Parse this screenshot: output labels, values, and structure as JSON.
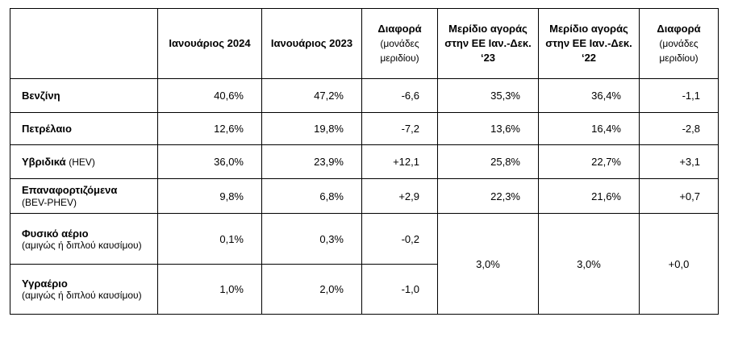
{
  "table": {
    "columns": [
      {
        "title": "Ιανουάριος 2024"
      },
      {
        "title": "Ιανουάριος 2023"
      },
      {
        "title": "Διαφορά",
        "note": "(μονάδες μεριδίου)"
      },
      {
        "title": "Μερίδιο αγοράς στην ΕΕ Ιαν.-Δεκ. ‘23"
      },
      {
        "title": "Μερίδιο αγοράς στην ΕΕ Ιαν.-Δεκ. ‘22"
      },
      {
        "title": "Διαφορά",
        "note": "(μονάδες μεριδίου)"
      }
    ],
    "rows": [
      {
        "label": "Βενζίνη",
        "cells": [
          "40,6%",
          "47,2%",
          "-6,6",
          "35,3%",
          "36,4%",
          "-1,1"
        ]
      },
      {
        "label": "Πετρέλαιο",
        "cells": [
          "12,6%",
          "19,8%",
          "-7,2",
          "13,6%",
          "16,4%",
          "-2,8"
        ]
      },
      {
        "label": "Υβριδικά",
        "sublabel": "(HEV)",
        "cells": [
          "36,0%",
          "23,9%",
          "+12,1",
          "25,8%",
          "22,7%",
          "+3,1"
        ]
      },
      {
        "label": "Επαναφορτιζόμενα",
        "sublabel": "(BEV-PHEV)",
        "cells": [
          "9,8%",
          "6,8%",
          "+2,9",
          "22,3%",
          "21,6%",
          "+0,7"
        ]
      },
      {
        "label": "Φυσικό αέριο",
        "sublabel": "(αμιγώς ή διπλού καυσίμου)",
        "cells": [
          "0,1%",
          "0,3%",
          "-0,2",
          "3,0%",
          "3,0%",
          "+0,0"
        ]
      },
      {
        "label": "Υγραέριο",
        "sublabel": "(αμιγώς ή διπλού καυσίμου)",
        "cells": [
          "1,0%",
          "2,0%",
          "-1,0"
        ]
      }
    ]
  }
}
